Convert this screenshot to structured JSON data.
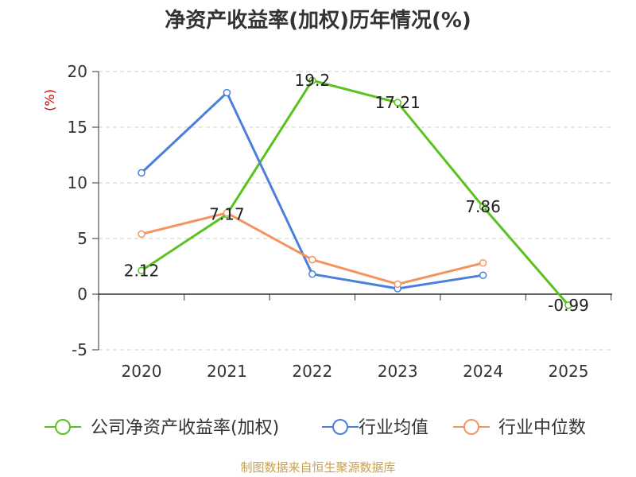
{
  "title": "净资产收益率(加权)历年情况(%)",
  "source": "制图数据来自恒生聚源数据库",
  "chart_data": {
    "type": "line",
    "title": "净资产收益率(加权)历年情况(%)",
    "ylabel": "(%)",
    "categories": [
      "2020",
      "2021",
      "2022",
      "2023",
      "2024",
      "2025"
    ],
    "ylim": [
      -5,
      20
    ],
    "yticks": [
      -5,
      0,
      5,
      10,
      15,
      20
    ],
    "grid": true,
    "legend_position": "bottom",
    "series": [
      {
        "name": "公司净资产收益率(加权)",
        "color": "#5ac11e",
        "values": [
          2.12,
          7.17,
          19.2,
          17.21,
          7.86,
          -0.99
        ],
        "labels": [
          "2.12",
          "7.17",
          "19.2",
          "17.21",
          "7.86",
          "-0.99"
        ]
      },
      {
        "name": "行业均值",
        "color": "#4a7fdc",
        "values": [
          10.9,
          18.1,
          1.8,
          0.5,
          1.7,
          null
        ]
      },
      {
        "name": "行业中位数",
        "color": "#f59360",
        "values": [
          5.4,
          7.3,
          3.1,
          0.9,
          2.8,
          null
        ]
      }
    ]
  }
}
